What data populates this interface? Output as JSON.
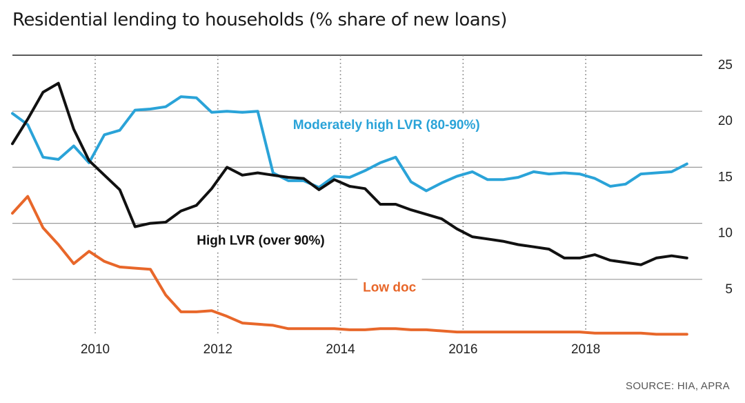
{
  "title": "Residential lending to households (% share of new loans)",
  "source": "SOURCE: HIA, APRA",
  "chart_data": {
    "type": "line",
    "title": "Residential lending to households (% share of new loans)",
    "xlabel": "",
    "ylabel": "",
    "xlim": [
      2008.65,
      2019.9
    ],
    "ylim": [
      0,
      25
    ],
    "x_ticks": [
      2010,
      2012,
      2014,
      2016,
      2018
    ],
    "y_ticks": [
      5,
      10,
      15,
      20,
      25
    ],
    "grid": "horizontal solid at y ticks, vertical dotted at x ticks",
    "series": [
      {
        "name": "Moderately high LVR (80-90%)",
        "color": "#2aa3d8",
        "label_color": "#2aa3d8",
        "label_x": 2014.75,
        "label_y": 18.4,
        "x": [
          2008.65,
          2008.9,
          2009.15,
          2009.4,
          2009.65,
          2009.9,
          2010.15,
          2010.4,
          2010.65,
          2010.9,
          2011.15,
          2011.4,
          2011.65,
          2011.9,
          2012.15,
          2012.4,
          2012.65,
          2012.9,
          2013.15,
          2013.4,
          2013.65,
          2013.9,
          2014.15,
          2014.4,
          2014.65,
          2014.9,
          2015.15,
          2015.4,
          2015.65,
          2015.9,
          2016.15,
          2016.4,
          2016.65,
          2016.9,
          2017.15,
          2017.4,
          2017.65,
          2017.9,
          2018.15,
          2018.4,
          2018.65,
          2018.9,
          2019.15,
          2019.4,
          2019.65
        ],
        "values": [
          19.8,
          18.8,
          15.9,
          15.7,
          16.9,
          15.4,
          17.9,
          18.3,
          20.1,
          20.2,
          20.4,
          21.3,
          21.2,
          19.9,
          20.0,
          19.9,
          20.0,
          14.5,
          13.8,
          13.8,
          13.2,
          14.2,
          14.1,
          14.7,
          15.4,
          15.9,
          13.7,
          12.9,
          13.6,
          14.2,
          14.6,
          13.9,
          13.9,
          14.1,
          14.6,
          14.4,
          14.5,
          14.4,
          14.0,
          13.3,
          13.5,
          14.4,
          14.5,
          14.6,
          15.3
        ]
      },
      {
        "name": "High LVR (over 90%)",
        "color": "#111111",
        "label_color": "#111111",
        "label_x": 2012.7,
        "label_y": 8.1,
        "x": [
          2008.65,
          2008.9,
          2009.15,
          2009.4,
          2009.65,
          2009.9,
          2010.15,
          2010.4,
          2010.65,
          2010.9,
          2011.15,
          2011.4,
          2011.65,
          2011.9,
          2012.15,
          2012.4,
          2012.65,
          2012.9,
          2013.15,
          2013.4,
          2013.65,
          2013.9,
          2014.15,
          2014.4,
          2014.65,
          2014.9,
          2015.15,
          2015.4,
          2015.65,
          2015.9,
          2016.15,
          2016.4,
          2016.65,
          2016.9,
          2017.15,
          2017.4,
          2017.65,
          2017.9,
          2018.15,
          2018.4,
          2018.65,
          2018.9,
          2019.15,
          2019.4,
          2019.65
        ],
        "values": [
          17.1,
          19.3,
          21.7,
          22.5,
          18.4,
          15.6,
          14.3,
          13.0,
          9.7,
          10.0,
          10.1,
          11.1,
          11.6,
          13.1,
          15.0,
          14.3,
          14.5,
          14.3,
          14.1,
          14.0,
          13.0,
          13.9,
          13.3,
          13.1,
          11.7,
          11.7,
          11.2,
          10.8,
          10.4,
          9.5,
          8.8,
          8.6,
          8.4,
          8.1,
          7.9,
          7.7,
          6.9,
          6.9,
          7.2,
          6.7,
          6.5,
          6.3,
          6.9,
          7.1,
          6.9
        ]
      },
      {
        "name": "Low doc",
        "color": "#e8672a",
        "label_color": "#e8672a",
        "label_x": 2014.8,
        "label_y": 3.9,
        "x": [
          2008.65,
          2008.9,
          2009.15,
          2009.4,
          2009.65,
          2009.9,
          2010.15,
          2010.4,
          2010.65,
          2010.9,
          2011.15,
          2011.4,
          2011.65,
          2011.9,
          2012.15,
          2012.4,
          2012.65,
          2012.9,
          2013.15,
          2013.4,
          2013.65,
          2013.9,
          2014.15,
          2014.4,
          2014.65,
          2014.9,
          2015.15,
          2015.4,
          2015.65,
          2015.9,
          2016.15,
          2016.4,
          2016.65,
          2016.9,
          2017.15,
          2017.4,
          2017.65,
          2017.9,
          2018.15,
          2018.4,
          2018.65,
          2018.9,
          2019.15,
          2019.4,
          2019.65
        ],
        "values": [
          10.9,
          12.4,
          9.6,
          8.1,
          6.4,
          7.5,
          6.6,
          6.1,
          6.0,
          5.9,
          3.6,
          2.1,
          2.1,
          2.2,
          1.7,
          1.1,
          1.0,
          0.9,
          0.6,
          0.6,
          0.6,
          0.6,
          0.5,
          0.5,
          0.6,
          0.6,
          0.5,
          0.5,
          0.4,
          0.3,
          0.3,
          0.3,
          0.3,
          0.3,
          0.3,
          0.3,
          0.3,
          0.3,
          0.2,
          0.2,
          0.2,
          0.2,
          0.1,
          0.1,
          0.1
        ]
      }
    ]
  }
}
